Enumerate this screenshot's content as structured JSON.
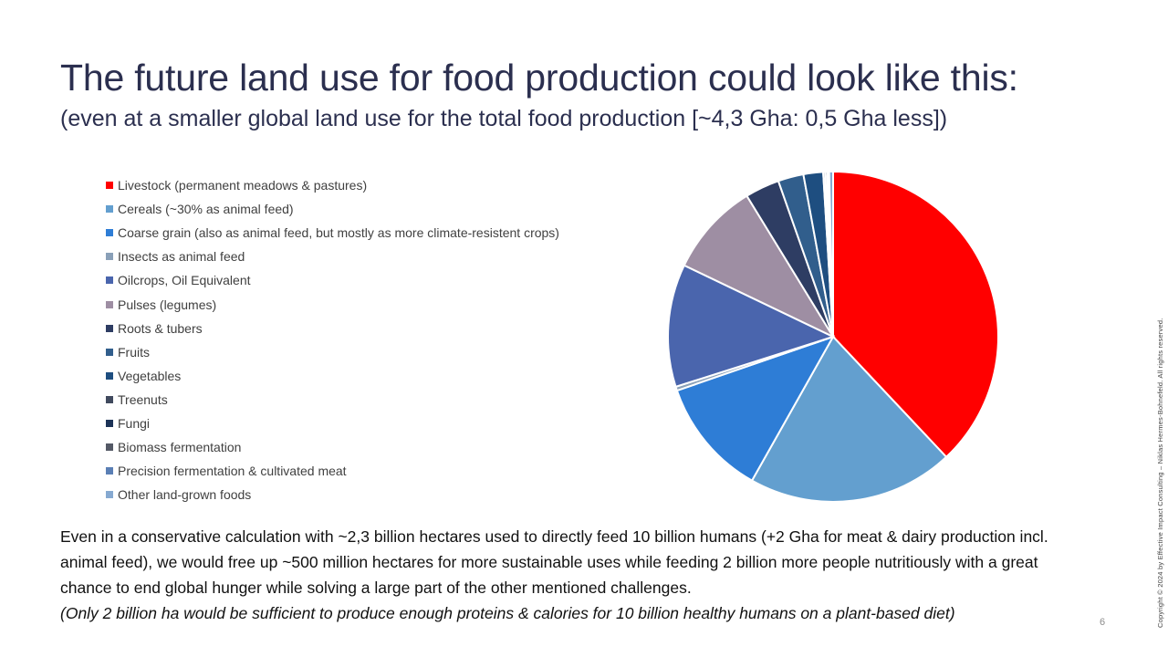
{
  "slide": {
    "title": "The future land use for food production could look like this:",
    "subtitle": "(even at a smaller global land use for the total food production [~4,3 Gha: 0,5 Gha less])",
    "body_lines": [
      "Even in a conservative calculation with ~2,3 billion hectares used to directly feed 10 billion humans (+2 Gha for meat & dairy production incl. animal feed), we would free up ~500 million hectares for more sustainable uses while feeding 2 billion more people nutritiously with a great chance to end global hunger while solving a large part of the other mentioned challenges."
    ],
    "note": "(Only 2 billion ha would be sufficient to produce enough proteins & calories for 10 billion healthy humans on a plant-based diet)",
    "page_number": "6",
    "copyright": "Copyright © 2024 by Effective Impact Consulting – Niklas Hermes-Bohnefeld. All rights reserved."
  },
  "chart_data": {
    "type": "pie",
    "title": "",
    "legend_position": "left",
    "categories": [
      "Livestock (permanent meadows & pastures)",
      "Cereals (~30% as animal feed)",
      "Coarse grain (also as animal feed, but mostly as more climate-resistent crops)",
      "Insects as animal feed",
      "Oilcrops, Oil Equivalent",
      "Pulses (legumes)",
      "Roots & tubers",
      "Fruits",
      "Vegetables",
      "Treenuts",
      "Fungi",
      "Biomass fermentation",
      "Precision fermentation & cultivated meat",
      "Other land-grown foods"
    ],
    "values": [
      39.5,
      21.0,
      12.0,
      0.4,
      12.5,
      9.5,
      3.5,
      2.6,
      2.0,
      0.2,
      0.2,
      0.1,
      0.1,
      0.4
    ],
    "colors": [
      "#ff0000",
      "#639fcf",
      "#2e7dd6",
      "#8aa0b8",
      "#4a65ad",
      "#9e8ea3",
      "#2e3d63",
      "#315e8c",
      "#1e4e80",
      "#404a5e",
      "#1c3357",
      "#545966",
      "#5a7fb5",
      "#86a9d1"
    ]
  }
}
